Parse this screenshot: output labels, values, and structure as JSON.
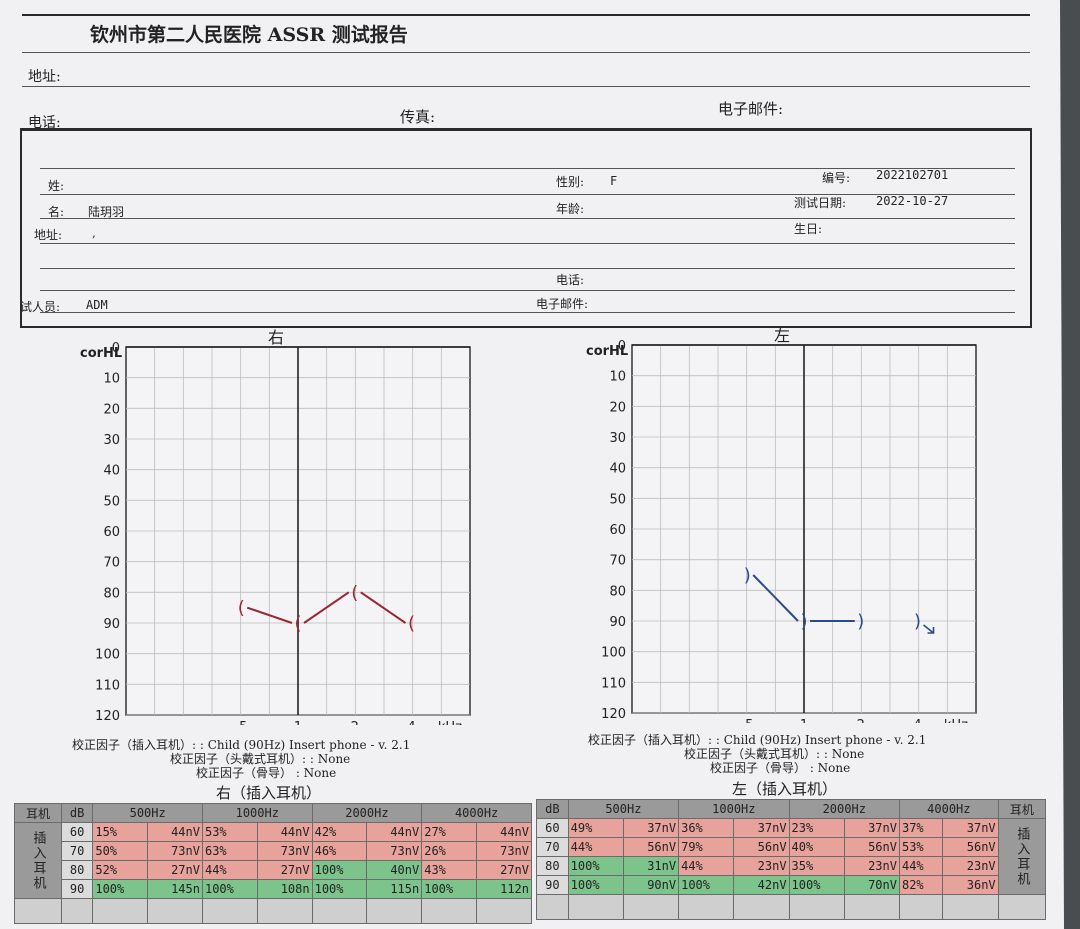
{
  "header": {
    "title": "钦州市第二人民医院 ASSR  测试报告",
    "address_label": "地址:",
    "phone_label": "电话:",
    "fax_label": "传真:",
    "email_label": "电子邮件:"
  },
  "patient": {
    "surname_label": "姓:",
    "given_name_label": "名:",
    "name": "陆玥羽",
    "address_label": "地址:",
    "address": ",",
    "tester_label": "试人员:",
    "tester": "ADM",
    "sex_label": "性别:",
    "sex": "F",
    "age_label": "年龄:",
    "phone_label": "电话:",
    "email_label": "电子邮件:",
    "number_label": "编号:",
    "number": "2022102701",
    "test_date_label": "测试日期:",
    "test_date": "2022-10-27",
    "birthday_label": "生日:"
  },
  "chart_data": [
    {
      "type": "line",
      "title": "右",
      "ylabel": "corHL",
      "xlabel": "kHz",
      "x_ticks": [
        ".5",
        "1",
        "2",
        "4"
      ],
      "x": [
        0.5,
        1,
        2,
        4
      ],
      "y_ticks": [
        0,
        10,
        20,
        30,
        40,
        50,
        60,
        70,
        80,
        90,
        100,
        110,
        120
      ],
      "ylim": [
        0,
        120
      ],
      "y_inverted": true,
      "grid": true,
      "color": "#9c2433",
      "marker": "(",
      "series": [
        {
          "values": [
            85,
            90,
            80,
            90
          ]
        }
      ]
    },
    {
      "type": "line",
      "title": "左",
      "ylabel": "corHL",
      "xlabel": "kHz",
      "x_ticks": [
        ".5",
        "1",
        "2",
        "4"
      ],
      "x": [
        0.5,
        1,
        2,
        4
      ],
      "y_ticks": [
        0,
        10,
        20,
        30,
        40,
        50,
        60,
        70,
        80,
        90,
        100,
        110,
        120
      ],
      "ylim": [
        0,
        120
      ],
      "y_inverted": true,
      "grid": true,
      "color": "#2b4a8a",
      "marker": ")",
      "series": [
        {
          "values": [
            75,
            90,
            90,
            null
          ]
        }
      ],
      "no_response": [
        {
          "x": 4,
          "y": 90
        }
      ]
    }
  ],
  "correction_right": {
    "line1": "校正因子（插入耳机）:  : Child (90Hz) Insert phone - v. 2.1",
    "line2": "校正因子（头戴式耳机）:  : None",
    "line3": "校正因子（骨导）  : None"
  },
  "correction_left": {
    "line1": "校正因子（插入耳机）:  : Child (90Hz) Insert phone - v. 2.1",
    "line2": "校正因子（头戴式耳机）:  : None",
    "line3": "校正因子（骨导）  : None"
  },
  "tables": {
    "right_title": "右（插入耳机）",
    "left_title": "左（插入耳机）",
    "ear_header": "耳机",
    "ear_type": "插入耳机",
    "db_header": "dB",
    "freq_headers": [
      "500Hz",
      "1000Hz",
      "2000Hz",
      "4000Hz"
    ],
    "right_rows": [
      {
        "db": "60",
        "cells": [
          [
            "15%",
            "44nV",
            "red"
          ],
          [
            "53%",
            "44nV",
            "red"
          ],
          [
            "42%",
            "44nV",
            "red"
          ],
          [
            "27%",
            "44nV",
            "red"
          ]
        ]
      },
      {
        "db": "70",
        "cells": [
          [
            "50%",
            "73nV",
            "red"
          ],
          [
            "63%",
            "73nV",
            "red"
          ],
          [
            "46%",
            "73nV",
            "red"
          ],
          [
            "26%",
            "73nV",
            "red"
          ]
        ]
      },
      {
        "db": "80",
        "cells": [
          [
            "52%",
            "27nV",
            "red"
          ],
          [
            "44%",
            "27nV",
            "red"
          ],
          [
            "100%",
            "40nV",
            "grn"
          ],
          [
            "43%",
            "27nV",
            "red"
          ]
        ]
      },
      {
        "db": "90",
        "cells": [
          [
            "100%",
            "145n",
            "grn"
          ],
          [
            "100%",
            "108n",
            "grn"
          ],
          [
            "100%",
            "115n",
            "grn"
          ],
          [
            "100%",
            "112n",
            "grn"
          ]
        ]
      }
    ],
    "left_rows": [
      {
        "db": "60",
        "cells": [
          [
            "49%",
            "37nV",
            "red"
          ],
          [
            "36%",
            "37nV",
            "red"
          ],
          [
            "23%",
            "37nV",
            "red"
          ],
          [
            "37%",
            "37nV",
            "red"
          ]
        ]
      },
      {
        "db": "70",
        "cells": [
          [
            "44%",
            "56nV",
            "red"
          ],
          [
            "79%",
            "56nV",
            "red"
          ],
          [
            "40%",
            "56nV",
            "red"
          ],
          [
            "53%",
            "56nV",
            "red"
          ]
        ]
      },
      {
        "db": "80",
        "cells": [
          [
            "100%",
            "31nV",
            "grn"
          ],
          [
            "44%",
            "23nV",
            "red"
          ],
          [
            "35%",
            "23nV",
            "red"
          ],
          [
            "44%",
            "23nV",
            "red"
          ]
        ]
      },
      {
        "db": "90",
        "cells": [
          [
            "100%",
            "90nV",
            "grn"
          ],
          [
            "100%",
            "42nV",
            "grn"
          ],
          [
            "100%",
            "70nV",
            "grn"
          ],
          [
            "82%",
            "36nV",
            "red"
          ]
        ]
      }
    ]
  }
}
